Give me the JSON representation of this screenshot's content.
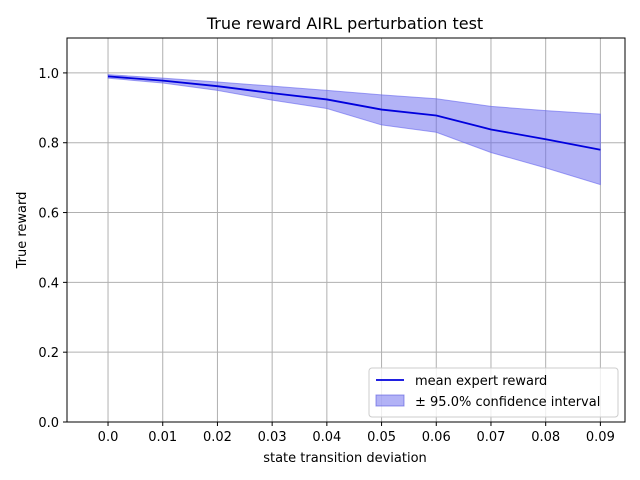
{
  "chart_data": {
    "type": "line",
    "title": "True reward AIRL perturbation test",
    "xlabel": "state transition deviation",
    "ylabel": "True reward",
    "x": [
      0.0,
      0.01,
      0.02,
      0.03,
      0.04,
      0.05,
      0.06,
      0.07,
      0.08,
      0.09
    ],
    "x_tick_labels": [
      "0.0",
      "0.01",
      "0.02",
      "0.03",
      "0.04",
      "0.05",
      "0.06",
      "0.07",
      "0.08",
      "0.09"
    ],
    "y_ticks": [
      0.0,
      0.2,
      0.4,
      0.6,
      0.8,
      1.0
    ],
    "y_tick_labels": [
      "0.0",
      "0.2",
      "0.4",
      "0.6",
      "0.8",
      "1.0"
    ],
    "xlim": [
      -0.0075,
      0.0945
    ],
    "ylim": [
      0.0,
      1.1
    ],
    "grid": true,
    "legend_position": "bottom-right",
    "series": [
      {
        "name": "mean expert reward",
        "values": [
          0.99,
          0.978,
          0.962,
          0.942,
          0.924,
          0.895,
          0.878,
          0.838,
          0.81,
          0.78
        ],
        "color": "#0000dd"
      }
    ],
    "confidence_band": {
      "name": "± 95.0% confidence interval",
      "upper": [
        0.995,
        0.985,
        0.974,
        0.962,
        0.95,
        0.937,
        0.926,
        0.904,
        0.892,
        0.882
      ],
      "lower": [
        0.985,
        0.971,
        0.95,
        0.922,
        0.898,
        0.851,
        0.83,
        0.772,
        0.728,
        0.68
      ],
      "color": "#6666ee"
    }
  }
}
